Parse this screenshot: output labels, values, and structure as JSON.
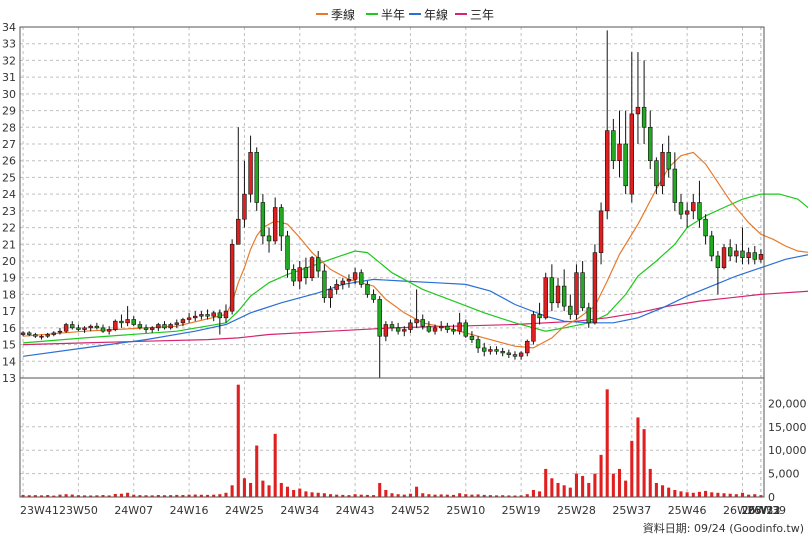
{
  "chart_data": {
    "type": "candlestick",
    "legend": [
      {
        "name": "季線",
        "color": "#e8792a"
      },
      {
        "name": "半年",
        "color": "#1ec81e"
      },
      {
        "name": "年線",
        "color": "#2a6fd6"
      },
      {
        "name": "三年",
        "color": "#d6246e"
      }
    ],
    "price_axis": {
      "min": 13,
      "max": 34,
      "ticks": [
        13,
        14,
        15,
        16,
        17,
        18,
        19,
        20,
        21,
        22,
        23,
        24,
        25,
        26,
        27,
        28,
        29,
        30,
        31,
        32,
        33,
        34
      ]
    },
    "volume_axis": {
      "min": 0,
      "max": 25000,
      "ticks": [
        0,
        5000,
        10000,
        15000,
        20000
      ],
      "tick_labels": [
        "0",
        "5,000",
        "10,000",
        "15,000",
        "20,000"
      ]
    },
    "x_ticks": [
      "23W41",
      "23W50",
      "24W07",
      "24W16",
      "24W25",
      "24W34",
      "24W43",
      "24W52",
      "25W10",
      "25W19",
      "25W28",
      "25W37",
      "25W46",
      "26W03",
      "26W13",
      "26W22",
      "26W31",
      "26W39"
    ],
    "grid": true,
    "legend_position": "top",
    "footer": "資料日期: 09/24  (Goodinfo.tw)",
    "colors": {
      "up": "#e02020",
      "down": "#22aa22",
      "volume": "#e02020",
      "grid": "#c0c0c0"
    },
    "weeks": [
      [
        15.6,
        15.8,
        15.5,
        15.7,
        450
      ],
      [
        15.7,
        15.8,
        15.5,
        15.6,
        380
      ],
      [
        15.6,
        15.7,
        15.4,
        15.5,
        400
      ],
      [
        15.5,
        15.6,
        15.3,
        15.5,
        350
      ],
      [
        15.5,
        15.7,
        15.4,
        15.6,
        420
      ],
      [
        15.6,
        15.8,
        15.5,
        15.7,
        300
      ],
      [
        15.8,
        16.0,
        15.6,
        15.8,
        500
      ],
      [
        15.8,
        16.3,
        15.7,
        16.2,
        600
      ],
      [
        16.2,
        16.4,
        15.9,
        16.0,
        520
      ],
      [
        16.0,
        16.2,
        15.8,
        15.9,
        380
      ],
      [
        15.9,
        16.1,
        15.7,
        16.0,
        350
      ],
      [
        16.0,
        16.2,
        15.8,
        16.1,
        330
      ],
      [
        16.1,
        16.3,
        15.9,
        16.0,
        360
      ],
      [
        16.0,
        16.2,
        15.7,
        15.8,
        420
      ],
      [
        15.8,
        16.1,
        15.6,
        15.9,
        340
      ],
      [
        15.9,
        16.5,
        15.8,
        16.4,
        650
      ],
      [
        16.4,
        16.8,
        16.0,
        16.3,
        700
      ],
      [
        16.3,
        17.3,
        16.1,
        16.5,
        900
      ],
      [
        16.5,
        16.7,
        16.1,
        16.2,
        500
      ],
      [
        16.2,
        16.4,
        15.9,
        16.0,
        400
      ],
      [
        16.0,
        16.2,
        15.7,
        15.9,
        380
      ],
      [
        15.9,
        16.1,
        15.7,
        16.0,
        350
      ],
      [
        16.0,
        16.3,
        15.8,
        16.2,
        420
      ],
      [
        16.2,
        16.4,
        15.9,
        16.0,
        380
      ],
      [
        16.0,
        16.3,
        15.9,
        16.2,
        400
      ],
      [
        16.2,
        16.5,
        16.0,
        16.3,
        450
      ],
      [
        16.3,
        16.6,
        16.1,
        16.5,
        420
      ],
      [
        16.5,
        16.9,
        16.3,
        16.6,
        500
      ],
      [
        16.6,
        17.0,
        16.4,
        16.7,
        520
      ],
      [
        16.7,
        17.0,
        16.5,
        16.8,
        480
      ],
      [
        16.8,
        17.1,
        16.5,
        16.7,
        450
      ],
      [
        16.7,
        17.0,
        16.4,
        16.9,
        500
      ],
      [
        16.9,
        17.1,
        15.6,
        16.6,
        600
      ],
      [
        16.6,
        17.4,
        16.3,
        17.0,
        900
      ],
      [
        17.0,
        21.3,
        16.8,
        21.0,
        2500
      ],
      [
        21.0,
        28.0,
        21.0,
        22.5,
        24000
      ],
      [
        22.5,
        26.0,
        22.0,
        24.0,
        4000
      ],
      [
        24.0,
        27.5,
        23.5,
        26.5,
        3000
      ],
      [
        26.5,
        26.8,
        23.0,
        23.5,
        11000
      ],
      [
        23.5,
        24.0,
        21.0,
        21.5,
        3500
      ],
      [
        21.5,
        22.0,
        20.5,
        21.2,
        2500
      ],
      [
        21.2,
        23.8,
        21.0,
        23.2,
        13500
      ],
      [
        23.2,
        23.4,
        20.6,
        21.5,
        3000
      ],
      [
        21.5,
        21.8,
        19.0,
        19.5,
        2200
      ],
      [
        19.5,
        19.8,
        18.5,
        18.8,
        1500
      ],
      [
        18.8,
        20.0,
        18.3,
        19.6,
        1800
      ],
      [
        19.6,
        20.2,
        18.6,
        19.0,
        1200
      ],
      [
        19.0,
        20.3,
        18.8,
        20.2,
        1000
      ],
      [
        20.2,
        20.6,
        19.0,
        19.4,
        900
      ],
      [
        19.4,
        19.8,
        17.5,
        17.8,
        800
      ],
      [
        17.8,
        18.5,
        17.2,
        18.3,
        600
      ],
      [
        18.3,
        18.9,
        18.0,
        18.6,
        500
      ],
      [
        18.6,
        19.0,
        18.3,
        18.8,
        450
      ],
      [
        18.8,
        19.2,
        18.4,
        18.9,
        400
      ],
      [
        18.9,
        19.6,
        18.6,
        19.3,
        600
      ],
      [
        19.3,
        19.5,
        18.4,
        18.6,
        500
      ],
      [
        18.6,
        18.8,
        17.8,
        18.0,
        450
      ],
      [
        18.0,
        18.3,
        17.5,
        17.7,
        400
      ],
      [
        17.7,
        17.9,
        13.0,
        15.5,
        3000
      ],
      [
        15.5,
        16.4,
        15.2,
        16.2,
        1500
      ],
      [
        16.2,
        16.4,
        15.8,
        16.0,
        800
      ],
      [
        16.0,
        16.3,
        15.6,
        15.8,
        600
      ],
      [
        15.8,
        16.1,
        15.5,
        15.9,
        500
      ],
      [
        15.9,
        16.5,
        15.7,
        16.3,
        700
      ],
      [
        16.3,
        18.3,
        16.0,
        16.5,
        2200
      ],
      [
        16.5,
        16.8,
        15.9,
        16.1,
        800
      ],
      [
        16.1,
        16.4,
        15.7,
        15.8,
        600
      ],
      [
        15.8,
        16.2,
        15.6,
        16.0,
        500
      ],
      [
        16.0,
        16.4,
        15.8,
        16.1,
        550
      ],
      [
        16.1,
        16.3,
        15.7,
        15.9,
        500
      ],
      [
        15.9,
        16.2,
        15.6,
        15.8,
        450
      ],
      [
        15.8,
        16.9,
        15.6,
        16.3,
        800
      ],
      [
        16.3,
        16.5,
        15.4,
        15.5,
        600
      ],
      [
        15.5,
        15.8,
        15.1,
        15.3,
        500
      ],
      [
        15.3,
        15.5,
        14.5,
        14.8,
        550
      ],
      [
        14.8,
        15.1,
        14.3,
        14.6,
        450
      ],
      [
        14.6,
        14.9,
        14.4,
        14.7,
        400
      ],
      [
        14.7,
        14.9,
        14.4,
        14.6,
        350
      ],
      [
        14.6,
        14.8,
        14.3,
        14.5,
        380
      ],
      [
        14.5,
        14.7,
        14.2,
        14.4,
        340
      ],
      [
        14.4,
        14.6,
        14.1,
        14.3,
        320
      ],
      [
        14.3,
        14.6,
        14.1,
        14.5,
        350
      ],
      [
        14.5,
        15.3,
        14.3,
        15.2,
        600
      ],
      [
        15.2,
        17.0,
        15.0,
        16.8,
        1500
      ],
      [
        16.8,
        17.5,
        16.2,
        16.6,
        1200
      ],
      [
        16.6,
        19.3,
        16.5,
        19.0,
        6000
      ],
      [
        19.0,
        19.8,
        17.0,
        17.5,
        4000
      ],
      [
        17.5,
        19.0,
        17.2,
        18.5,
        3000
      ],
      [
        18.5,
        19.5,
        17.0,
        17.3,
        2500
      ],
      [
        17.3,
        18.0,
        16.5,
        16.8,
        2000
      ],
      [
        16.8,
        19.8,
        16.5,
        19.3,
        5000
      ],
      [
        19.3,
        20.0,
        17.0,
        17.2,
        4500
      ],
      [
        17.2,
        17.5,
        16.0,
        16.3,
        3000
      ],
      [
        16.3,
        21.0,
        16.2,
        20.5,
        5000
      ],
      [
        20.5,
        23.5,
        19.8,
        23.0,
        9000
      ],
      [
        23.0,
        33.8,
        22.5,
        27.8,
        23000
      ],
      [
        27.8,
        28.5,
        25.5,
        26.0,
        5000
      ],
      [
        26.0,
        29.0,
        25.0,
        27.0,
        6000
      ],
      [
        27.0,
        29.0,
        24.0,
        24.5,
        3500
      ],
      [
        24.0,
        32.5,
        23.5,
        28.8,
        12000
      ],
      [
        28.8,
        32.5,
        27.0,
        29.2,
        17000
      ],
      [
        29.2,
        32.0,
        27.0,
        28.0,
        14500
      ],
      [
        28.0,
        29.0,
        25.5,
        26.0,
        6000
      ],
      [
        26.0,
        26.2,
        24.0,
        24.5,
        3000
      ],
      [
        24.5,
        27.0,
        24.0,
        26.5,
        2500
      ],
      [
        26.5,
        27.5,
        25.0,
        25.5,
        2000
      ],
      [
        25.5,
        26.5,
        23.0,
        23.5,
        1500
      ],
      [
        23.5,
        24.0,
        22.5,
        22.8,
        1200
      ],
      [
        22.8,
        23.5,
        22.0,
        23.0,
        1000
      ],
      [
        23.0,
        24.0,
        22.5,
        23.5,
        900
      ],
      [
        23.5,
        24.8,
        22.0,
        22.5,
        1100
      ],
      [
        22.5,
        22.8,
        21.0,
        21.5,
        1300
      ],
      [
        21.5,
        21.8,
        20.0,
        20.3,
        1000
      ],
      [
        20.3,
        20.6,
        18.0,
        19.6,
        900
      ],
      [
        19.6,
        21.0,
        19.5,
        20.8,
        800
      ],
      [
        20.8,
        21.3,
        20.0,
        20.3,
        700
      ],
      [
        20.3,
        21.0,
        19.9,
        20.6,
        600
      ],
      [
        20.6,
        22.0,
        19.8,
        20.2,
        900
      ],
      [
        20.2,
        20.8,
        19.8,
        20.5,
        500
      ],
      [
        20.5,
        20.9,
        19.8,
        20.1,
        600
      ],
      [
        20.1,
        20.7,
        19.9,
        20.4,
        400
      ]
    ],
    "ma_quarter": [
      [
        0,
        15.5
      ],
      [
        10,
        15.8
      ],
      [
        25,
        16.1
      ],
      [
        33,
        16.8
      ],
      [
        34,
        17.5
      ],
      [
        35,
        18.7
      ],
      [
        36,
        19.6
      ],
      [
        37,
        20.7
      ],
      [
        38,
        21.5
      ],
      [
        39,
        22.0
      ],
      [
        41,
        22.4
      ],
      [
        43,
        22.2
      ],
      [
        45,
        21.4
      ],
      [
        47,
        20.5
      ],
      [
        50,
        19.5
      ],
      [
        53,
        18.9
      ],
      [
        57,
        18.5
      ],
      [
        59,
        17.7
      ],
      [
        62,
        16.9
      ],
      [
        65,
        16.3
      ],
      [
        70,
        15.9
      ],
      [
        75,
        15.4
      ],
      [
        80,
        14.9
      ],
      [
        83,
        14.8
      ],
      [
        86,
        15.4
      ],
      [
        88,
        16.1
      ],
      [
        90,
        16.5
      ],
      [
        93,
        17.3
      ],
      [
        95,
        18.8
      ],
      [
        97,
        20.4
      ],
      [
        100,
        22.2
      ],
      [
        103,
        24.3
      ],
      [
        105,
        25.6
      ],
      [
        107,
        26.3
      ],
      [
        109,
        26.5
      ],
      [
        111,
        25.8
      ],
      [
        113,
        24.7
      ],
      [
        115,
        23.6
      ],
      [
        118,
        22.3
      ],
      [
        120,
        21.6
      ],
      [
        122,
        21.3
      ],
      [
        124,
        20.9
      ],
      [
        126,
        20.6
      ],
      [
        128,
        20.5
      ]
    ],
    "ma_half": [
      [
        0,
        15.1
      ],
      [
        10,
        15.4
      ],
      [
        25,
        15.8
      ],
      [
        33,
        16.3
      ],
      [
        35,
        17.0
      ],
      [
        37,
        17.9
      ],
      [
        40,
        18.7
      ],
      [
        43,
        19.2
      ],
      [
        47,
        19.7
      ],
      [
        50,
        20.1
      ],
      [
        54,
        20.6
      ],
      [
        56,
        20.5
      ],
      [
        60,
        19.3
      ],
      [
        65,
        18.3
      ],
      [
        70,
        17.6
      ],
      [
        75,
        16.9
      ],
      [
        80,
        16.3
      ],
      [
        85,
        15.8
      ],
      [
        88,
        16.0
      ],
      [
        92,
        16.3
      ],
      [
        95,
        16.8
      ],
      [
        98,
        18.0
      ],
      [
        100,
        19.1
      ],
      [
        103,
        20.0
      ],
      [
        106,
        21.0
      ],
      [
        108,
        22.0
      ],
      [
        111,
        22.7
      ],
      [
        114,
        23.2
      ],
      [
        117,
        23.7
      ],
      [
        120,
        24.0
      ],
      [
        123,
        24.0
      ],
      [
        126,
        23.7
      ],
      [
        128,
        23.1
      ]
    ],
    "ma_year": [
      [
        0,
        14.3
      ],
      [
        10,
        14.8
      ],
      [
        20,
        15.3
      ],
      [
        28,
        15.8
      ],
      [
        33,
        16.2
      ],
      [
        37,
        16.9
      ],
      [
        42,
        17.5
      ],
      [
        48,
        18.1
      ],
      [
        52,
        18.6
      ],
      [
        57,
        18.9
      ],
      [
        62,
        18.8
      ],
      [
        67,
        18.7
      ],
      [
        72,
        18.6
      ],
      [
        76,
        18.2
      ],
      [
        80,
        17.4
      ],
      [
        85,
        16.7
      ],
      [
        88,
        16.4
      ],
      [
        92,
        16.3
      ],
      [
        96,
        16.3
      ],
      [
        100,
        16.6
      ],
      [
        104,
        17.2
      ],
      [
        108,
        17.9
      ],
      [
        112,
        18.5
      ],
      [
        116,
        19.1
      ],
      [
        120,
        19.6
      ],
      [
        124,
        20.1
      ],
      [
        128,
        20.4
      ]
    ],
    "ma_3y": [
      [
        0,
        15.0
      ],
      [
        10,
        15.1
      ],
      [
        20,
        15.2
      ],
      [
        30,
        15.3
      ],
      [
        35,
        15.4
      ],
      [
        40,
        15.6
      ],
      [
        50,
        15.8
      ],
      [
        60,
        16.0
      ],
      [
        70,
        16.1
      ],
      [
        80,
        16.2
      ],
      [
        90,
        16.4
      ],
      [
        95,
        16.6
      ],
      [
        100,
        16.9
      ],
      [
        105,
        17.3
      ],
      [
        110,
        17.6
      ],
      [
        115,
        17.8
      ],
      [
        120,
        18.0
      ],
      [
        128,
        18.2
      ]
    ]
  }
}
